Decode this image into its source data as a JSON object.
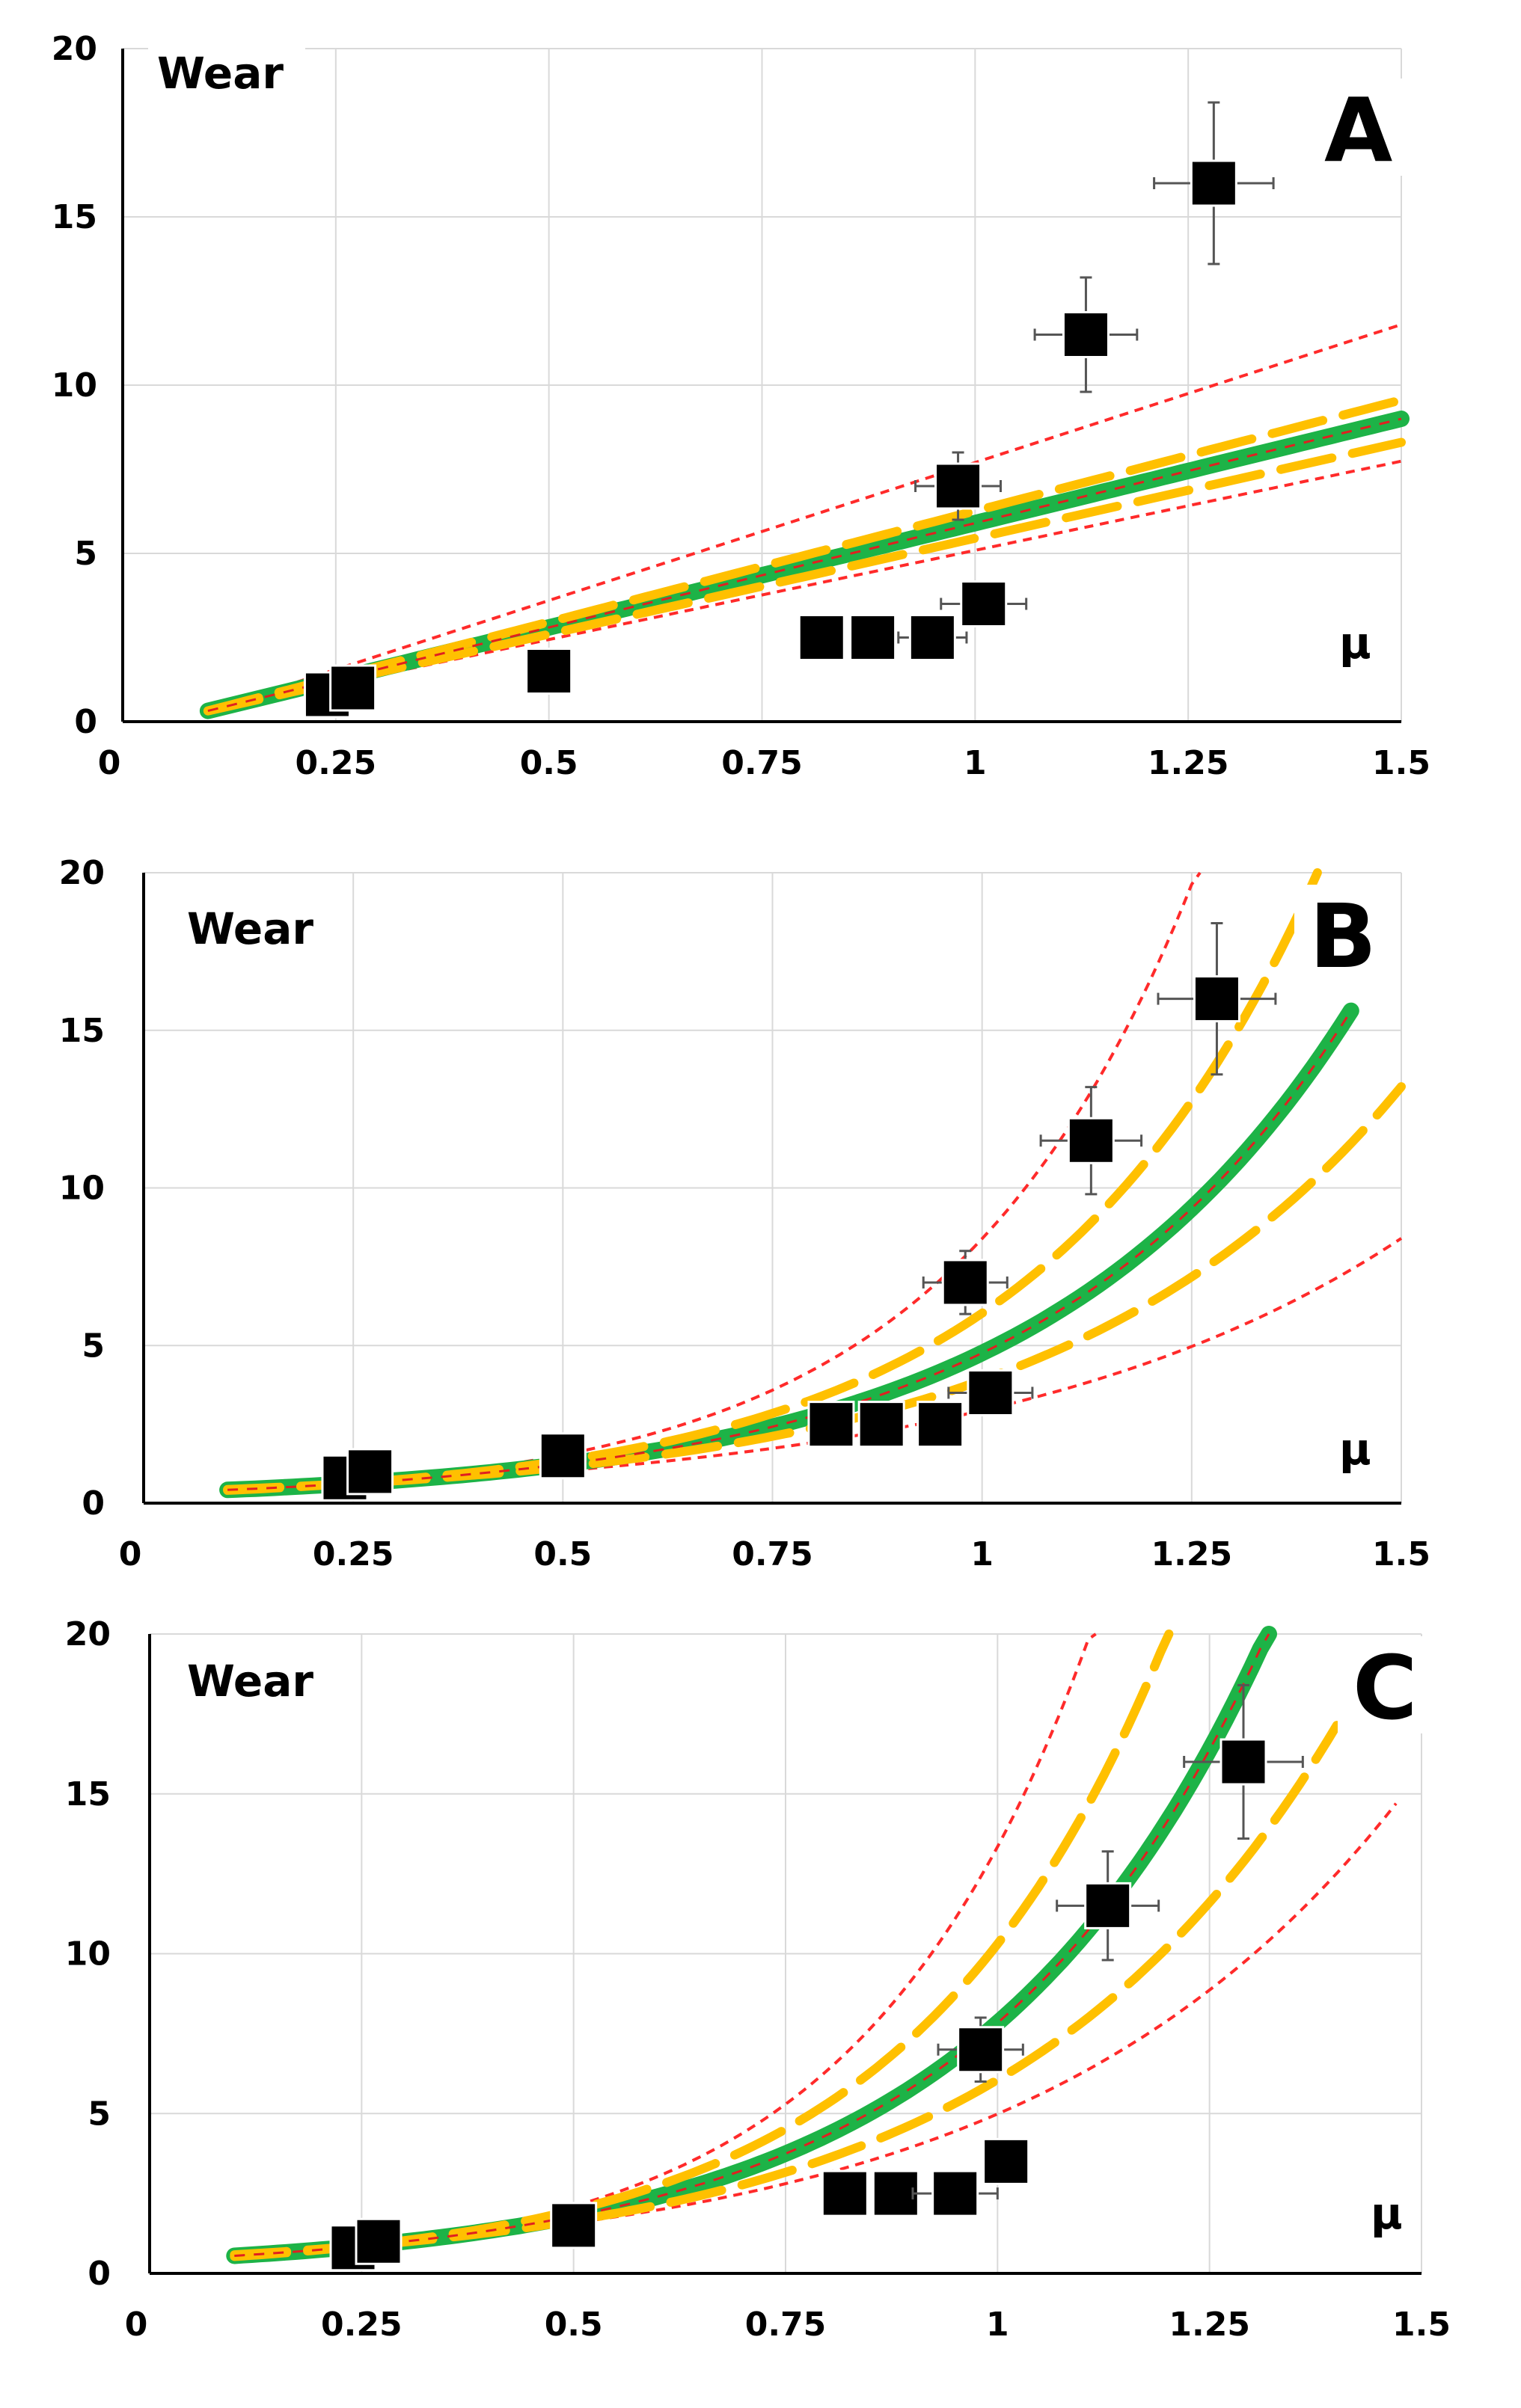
{
  "chart_data": [
    {
      "type": "scatter",
      "panel": "A",
      "ylabel": "Wear",
      "xlabel": "μ",
      "xlim": [
        0,
        1.5
      ],
      "ylim": [
        0,
        20
      ],
      "xticks": [
        "0",
        "0.25",
        "0.5",
        "0.75",
        "1",
        "1.25",
        "1.5"
      ],
      "yticks": [
        "0",
        "5",
        "10",
        "15",
        "20"
      ],
      "grid": true,
      "points": [
        {
          "x": 0.24,
          "y": 0.8,
          "xerr": 0.0,
          "yerr": 0.0
        },
        {
          "x": 0.27,
          "y": 1.0,
          "xerr": 0.0,
          "yerr": 0.0
        },
        {
          "x": 0.5,
          "y": 1.5,
          "xerr": 0.0,
          "yerr": 0.0
        },
        {
          "x": 0.82,
          "y": 2.5,
          "xerr": 0.0,
          "yerr": 0.0
        },
        {
          "x": 0.88,
          "y": 2.5,
          "xerr": 0.0,
          "yerr": 0.0
        },
        {
          "x": 0.95,
          "y": 2.5,
          "xerr": 0.04,
          "yerr": 0.0
        },
        {
          "x": 1.01,
          "y": 3.5,
          "xerr": 0.05,
          "yerr": 0.6
        },
        {
          "x": 0.98,
          "y": 7.0,
          "xerr": 0.05,
          "yerr": 1.0
        },
        {
          "x": 1.13,
          "y": 11.5,
          "xerr": 0.06,
          "yerr": 1.7
        },
        {
          "x": 1.28,
          "y": 16.0,
          "xerr": 0.07,
          "yerr": 2.4
        }
      ],
      "fit_model": "linear",
      "fit": {
        "xstart": 0.1,
        "xend": 1.5,
        "slope": 6.2,
        "intercept": -0.3
      },
      "band_inner": {
        "slope_low": 5.7,
        "slope_high": 6.6
      },
      "band_outer": {
        "slope_low": 5.3,
        "slope_high": 8.2
      }
    },
    {
      "type": "scatter",
      "panel": "B",
      "ylabel": "Wear",
      "xlabel": "μ",
      "xlim": [
        0,
        1.5
      ],
      "ylim": [
        0,
        20
      ],
      "xticks": [
        "0",
        "0.25",
        "0.5",
        "0.75",
        "1",
        "1.25",
        "1.5"
      ],
      "yticks": [
        "0",
        "5",
        "10",
        "15",
        "20"
      ],
      "grid": true,
      "points": [
        {
          "x": 0.24,
          "y": 0.8,
          "xerr": 0.0,
          "yerr": 0.0
        },
        {
          "x": 0.27,
          "y": 1.0,
          "xerr": 0.0,
          "yerr": 0.0
        },
        {
          "x": 0.5,
          "y": 1.5,
          "xerr": 0.0,
          "yerr": 0.0
        },
        {
          "x": 0.82,
          "y": 2.5,
          "xerr": 0.0,
          "yerr": 0.0
        },
        {
          "x": 0.88,
          "y": 2.5,
          "xerr": 0.0,
          "yerr": 0.0
        },
        {
          "x": 0.95,
          "y": 2.5,
          "xerr": 0.0,
          "yerr": 0.0
        },
        {
          "x": 1.01,
          "y": 3.5,
          "xerr": 0.05,
          "yerr": 0.6
        },
        {
          "x": 0.98,
          "y": 7.0,
          "xerr": 0.05,
          "yerr": 1.0
        },
        {
          "x": 1.13,
          "y": 11.5,
          "xerr": 0.06,
          "yerr": 1.7
        },
        {
          "x": 1.28,
          "y": 16.0,
          "xerr": 0.07,
          "yerr": 2.4
        }
      ],
      "fit_model": "exponential",
      "fit": {
        "xstart": 0.1,
        "xend": 1.44,
        "a": 0.32,
        "b": 2.7
      },
      "band_inner": {
        "low": {
          "a": 0.34,
          "b": 2.44,
          "xend": 1.5
        },
        "high": {
          "a": 0.3,
          "b": 3.0,
          "xend": 1.4
        }
      },
      "band_outer": {
        "low": {
          "a": 0.36,
          "b": 2.1,
          "xend": 1.5
        },
        "high": {
          "a": 0.28,
          "b": 3.4,
          "xend": 1.3
        }
      }
    },
    {
      "type": "scatter",
      "panel": "C",
      "ylabel": "Wear",
      "xlabel": "μ",
      "xlim": [
        0,
        1.5
      ],
      "ylim": [
        0,
        20
      ],
      "xticks": [
        "0",
        "0.25",
        "0.5",
        "0.75",
        "1",
        "1.25",
        "1.5"
      ],
      "yticks": [
        "0",
        "5",
        "10",
        "15",
        "20"
      ],
      "grid": true,
      "points": [
        {
          "x": 0.24,
          "y": 0.8,
          "xerr": 0.0,
          "yerr": 0.0
        },
        {
          "x": 0.27,
          "y": 1.0,
          "xerr": 0.0,
          "yerr": 0.0
        },
        {
          "x": 0.5,
          "y": 1.5,
          "xerr": 0.0,
          "yerr": 0.0
        },
        {
          "x": 0.82,
          "y": 2.5,
          "xerr": 0.0,
          "yerr": 0.0
        },
        {
          "x": 0.88,
          "y": 2.5,
          "xerr": 0.0,
          "yerr": 0.0
        },
        {
          "x": 0.95,
          "y": 2.5,
          "xerr": 0.05,
          "yerr": 0.0
        },
        {
          "x": 1.01,
          "y": 3.5,
          "xerr": 0.0,
          "yerr": 0.0
        },
        {
          "x": 0.98,
          "y": 7.0,
          "xerr": 0.05,
          "yerr": 1.0
        },
        {
          "x": 1.13,
          "y": 11.5,
          "xerr": 0.06,
          "yerr": 1.7
        },
        {
          "x": 1.29,
          "y": 16.0,
          "xerr": 0.07,
          "yerr": 2.4
        }
      ],
      "fit_model": "exponential",
      "fit": {
        "xstart": 0.1,
        "xend": 1.32,
        "a": 0.41,
        "b": 2.95
      },
      "band_inner": {
        "low": {
          "a": 0.45,
          "b": 2.6,
          "xend": 1.4
        },
        "high": {
          "a": 0.38,
          "b": 3.3,
          "xend": 1.25
        }
      },
      "band_outer": {
        "low": {
          "a": 0.5,
          "b": 2.3,
          "xend": 1.47
        },
        "high": {
          "a": 0.33,
          "b": 3.7,
          "xend": 1.16
        }
      }
    }
  ]
}
